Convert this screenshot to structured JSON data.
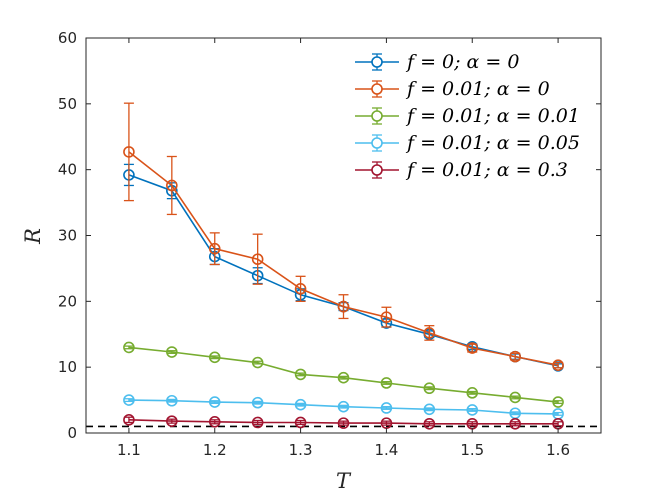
{
  "chart_data": {
    "type": "line",
    "title": "",
    "xlabel": "T",
    "ylabel": "R",
    "xlim": [
      1.05,
      1.65
    ],
    "ylim": [
      0,
      60
    ],
    "x_ticks": [
      1.1,
      1.2,
      1.3,
      1.4,
      1.5,
      1.6
    ],
    "x_tick_labels": [
      "1.1",
      "1.2",
      "1.3",
      "1.4",
      "1.5",
      "1.6"
    ],
    "y_ticks": [
      0,
      10,
      20,
      30,
      40,
      50,
      60
    ],
    "y_tick_labels": [
      "0",
      "10",
      "20",
      "30",
      "40",
      "50",
      "60"
    ],
    "grid": false,
    "legend_position": "top-right",
    "x": [
      1.1,
      1.15,
      1.2,
      1.25,
      1.3,
      1.35,
      1.4,
      1.45,
      1.5,
      1.55,
      1.6
    ],
    "reference_line": {
      "y": 1,
      "style": "dashed",
      "color": "#000000"
    },
    "series": [
      {
        "name": "f = 0; α = 0",
        "color": "#0072BD",
        "values": [
          39.2,
          36.8,
          26.8,
          23.9,
          21.0,
          19.2,
          16.7,
          15.0,
          13.1,
          11.6,
          10.2
        ],
        "errors": [
          1.6,
          1.2,
          1.2,
          1.2,
          0.9,
          0.6,
          0.6,
          0.5,
          0.4,
          0.4,
          0.3
        ]
      },
      {
        "name": "f = 0.01; α = 0",
        "color": "#D95319",
        "values": [
          42.7,
          37.6,
          28.0,
          26.4,
          21.9,
          19.2,
          17.6,
          15.2,
          12.9,
          11.6,
          10.3
        ],
        "errors": [
          7.4,
          4.4,
          2.4,
          3.8,
          1.9,
          1.8,
          1.5,
          1.1,
          0.6,
          0.5,
          0.4
        ]
      },
      {
        "name": "f = 0.01; α = 0.01",
        "color": "#77AC30",
        "values": [
          13.0,
          12.3,
          11.5,
          10.7,
          8.9,
          8.4,
          7.6,
          6.8,
          6.1,
          5.4,
          4.7
        ],
        "errors": [
          0.2,
          0.2,
          0.2,
          0.2,
          0.2,
          0.2,
          0.2,
          0.2,
          0.2,
          0.2,
          0.2
        ]
      },
      {
        "name": "f = 0.01; α = 0.05",
        "color": "#4DBEEE",
        "values": [
          5.0,
          4.9,
          4.7,
          4.6,
          4.3,
          4.0,
          3.8,
          3.6,
          3.5,
          3.0,
          2.9
        ],
        "errors": [
          0.2,
          0.2,
          0.2,
          0.2,
          0.2,
          0.2,
          0.2,
          0.2,
          0.2,
          0.2,
          0.2
        ]
      },
      {
        "name": "f = 0.01; α = 0.3",
        "color": "#A2142F",
        "values": [
          2.0,
          1.8,
          1.7,
          1.6,
          1.6,
          1.5,
          1.5,
          1.4,
          1.4,
          1.4,
          1.4
        ],
        "errors": [
          0.4,
          0.3,
          0.3,
          0.3,
          0.3,
          0.3,
          0.3,
          0.3,
          0.3,
          0.3,
          0.3
        ]
      }
    ]
  }
}
